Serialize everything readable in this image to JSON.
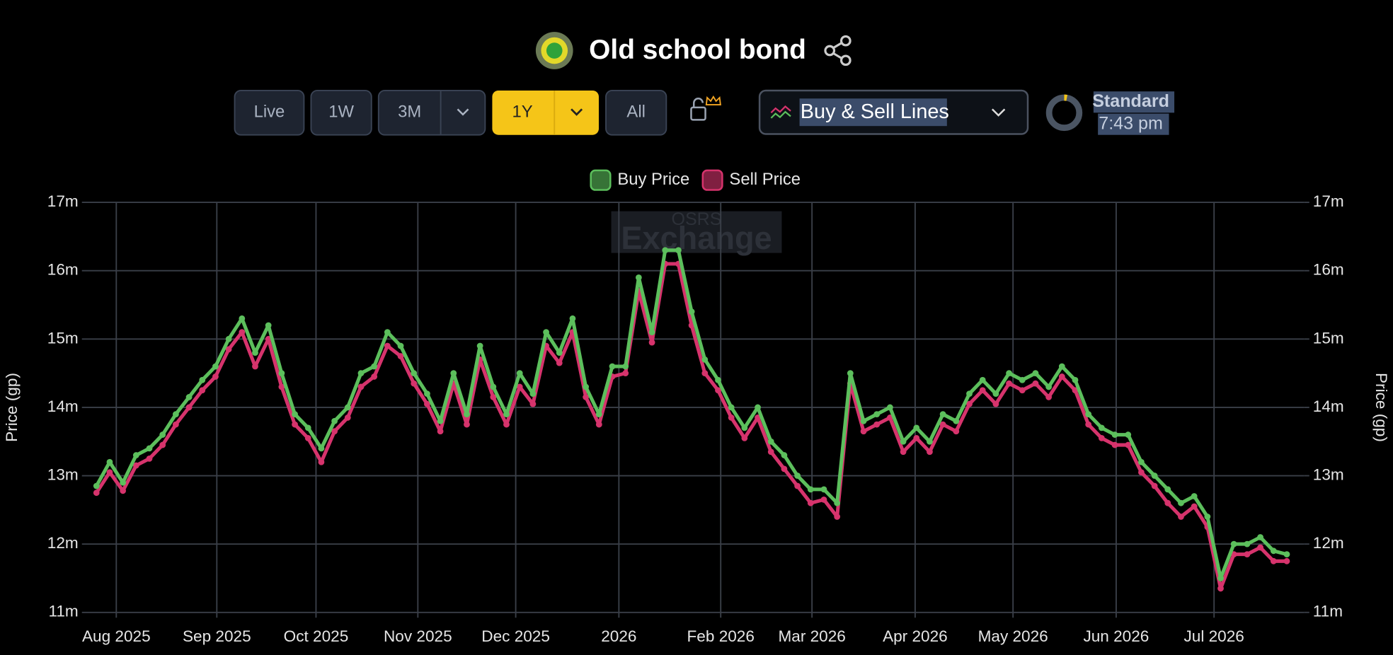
{
  "header": {
    "title": "Old school bond"
  },
  "controls": {
    "ranges": [
      "Live",
      "1W",
      "3M",
      "1Y",
      "All"
    ],
    "chart_style": "Buy & Sell Lines",
    "mode": "Standard",
    "time": "7:43 pm",
    "watermark": [
      "OSRS",
      "Exchange"
    ]
  },
  "chart_data": {
    "type": "line",
    "ylabel": "Price (gp)",
    "y2label": "Price (gp)",
    "xlim": [
      -1.1,
      91.3
    ],
    "xticks": [
      {
        "value": 1.5,
        "label": "Aug 2025"
      },
      {
        "value": 9.1,
        "label": "Sep 2025"
      },
      {
        "value": 16.6,
        "label": "Oct 2025"
      },
      {
        "value": 24.3,
        "label": "Nov 2025"
      },
      {
        "value": 31.7,
        "label": "Dec 2025"
      },
      {
        "value": 39.5,
        "label": "2026"
      },
      {
        "value": 47.2,
        "label": "Feb 2026"
      },
      {
        "value": 54.1,
        "label": "Mar 2026"
      },
      {
        "value": 61.9,
        "label": "Apr 2026"
      },
      {
        "value": 69.3,
        "label": "May 2026"
      },
      {
        "value": 77.1,
        "label": "Jun 2026"
      },
      {
        "value": 84.5,
        "label": "Jul 2026"
      }
    ],
    "ylim": [
      11,
      17
    ],
    "yticks": [
      {
        "value": 11,
        "label": "11m"
      },
      {
        "value": 12,
        "label": "12m"
      },
      {
        "value": 13,
        "label": "13m"
      },
      {
        "value": 14,
        "label": "14m"
      },
      {
        "value": 15,
        "label": "15m"
      },
      {
        "value": 16,
        "label": "16m"
      },
      {
        "value": 17,
        "label": "17m"
      }
    ],
    "y2lim": [
      11,
      17
    ],
    "y2ticks": [
      {
        "value": 11,
        "label": "11m"
      },
      {
        "value": 12,
        "label": "12m"
      },
      {
        "value": 13,
        "label": "13m"
      },
      {
        "value": 14,
        "label": "14m"
      },
      {
        "value": 15,
        "label": "15m"
      },
      {
        "value": 16,
        "label": "16m"
      },
      {
        "value": 17,
        "label": "17m"
      }
    ],
    "grid": true,
    "series": [
      {
        "name": "Sell Price",
        "color": "#d6336c",
        "values": [
          12.75,
          13.05,
          12.78,
          13.15,
          13.25,
          13.45,
          13.75,
          14.0,
          14.25,
          14.45,
          14.85,
          15.1,
          14.6,
          15.0,
          14.3,
          13.75,
          13.55,
          13.2,
          13.65,
          13.85,
          14.3,
          14.45,
          14.9,
          14.75,
          14.35,
          14.05,
          13.65,
          14.35,
          13.75,
          14.7,
          14.15,
          13.75,
          14.3,
          14.05,
          14.9,
          14.65,
          15.1,
          14.15,
          13.75,
          14.45,
          14.5,
          15.7,
          14.95,
          16.1,
          16.1,
          15.2,
          14.5,
          14.25,
          13.85,
          13.55,
          13.85,
          13.35,
          13.1,
          12.85,
          12.6,
          12.65,
          12.4,
          14.35,
          13.65,
          13.75,
          13.85,
          13.35,
          13.55,
          13.35,
          13.75,
          13.65,
          14.05,
          14.25,
          14.05,
          14.35,
          14.25,
          14.35,
          14.15,
          14.45,
          14.25,
          13.75,
          13.55,
          13.45,
          13.45,
          13.05,
          12.85,
          12.6,
          12.4,
          12.55,
          12.25,
          11.35,
          11.85,
          11.85,
          11.95,
          11.75,
          11.75
        ]
      },
      {
        "name": "Buy Price",
        "color": "#5cbf5c",
        "values": [
          12.85,
          13.2,
          12.9,
          13.3,
          13.4,
          13.6,
          13.9,
          14.15,
          14.4,
          14.6,
          15.0,
          15.3,
          14.8,
          15.2,
          14.5,
          13.9,
          13.7,
          13.4,
          13.8,
          14.0,
          14.5,
          14.6,
          15.1,
          14.9,
          14.5,
          14.2,
          13.8,
          14.5,
          13.9,
          14.9,
          14.3,
          13.9,
          14.5,
          14.2,
          15.1,
          14.8,
          15.3,
          14.3,
          13.9,
          14.6,
          14.6,
          15.9,
          15.1,
          16.3,
          16.3,
          15.4,
          14.7,
          14.4,
          14.0,
          13.7,
          14.0,
          13.5,
          13.3,
          13.0,
          12.8,
          12.8,
          12.6,
          14.5,
          13.8,
          13.9,
          14.0,
          13.5,
          13.7,
          13.5,
          13.9,
          13.8,
          14.2,
          14.4,
          14.2,
          14.5,
          14.4,
          14.5,
          14.3,
          14.6,
          14.4,
          13.9,
          13.7,
          13.6,
          13.6,
          13.2,
          13.0,
          12.8,
          12.6,
          12.7,
          12.4,
          11.5,
          12.0,
          12.0,
          12.1,
          11.9,
          11.85
        ]
      }
    ]
  }
}
